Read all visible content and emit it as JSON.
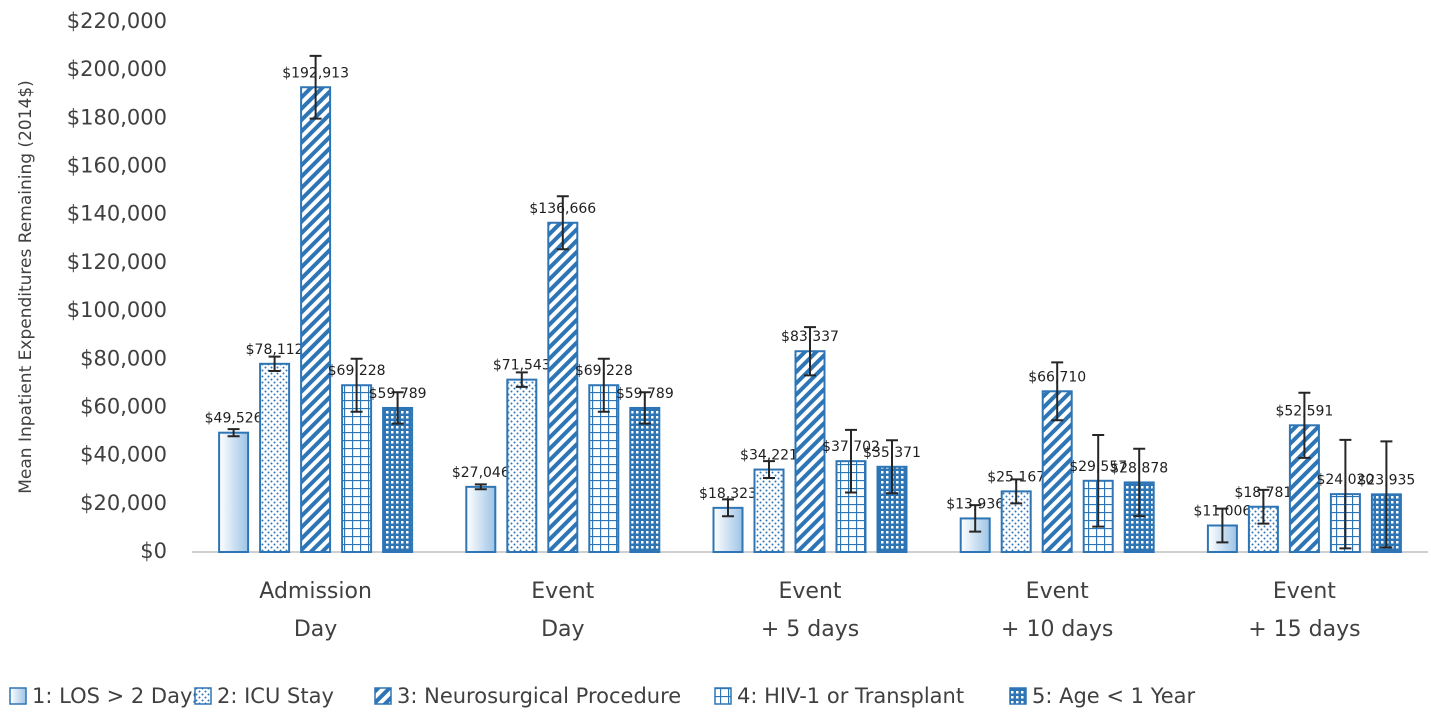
{
  "chart_data": {
    "type": "bar",
    "y_axis_label": "Mean Inpatient Expenditures Remaining (2014$)",
    "categories": [
      [
        "Admission",
        "Day"
      ],
      [
        "Event",
        "Day"
      ],
      [
        "Event",
        "+ 5 days"
      ],
      [
        "Event",
        "+ 10 days"
      ],
      [
        "Event",
        "+ 15 days"
      ]
    ],
    "ylim": [
      0,
      220000
    ],
    "yticks": [
      {
        "value": 0,
        "label": "$0"
      },
      {
        "value": 20000,
        "label": "$20,000"
      },
      {
        "value": 40000,
        "label": "$40,000"
      },
      {
        "value": 60000,
        "label": "$60,000"
      },
      {
        "value": 80000,
        "label": "$80,000"
      },
      {
        "value": 100000,
        "label": "$100,000"
      },
      {
        "value": 120000,
        "label": "$120,000"
      },
      {
        "value": 140000,
        "label": "$140,000"
      },
      {
        "value": 160000,
        "label": "$160,000"
      },
      {
        "value": 180000,
        "label": "$180,000"
      },
      {
        "value": 200000,
        "label": "$200,000"
      },
      {
        "value": 220000,
        "label": "$220,000"
      }
    ],
    "grid": false,
    "legend": "bottom",
    "series": [
      {
        "name": "1: LOS > 2 Days",
        "color": "#2e75b6",
        "pattern": "gradient",
        "values": [
          49526,
          27046,
          18323,
          13936,
          11006
        ],
        "value_labels": [
          "$49,526",
          "$27,046",
          "$18,323",
          "$13,936",
          "$11,006"
        ],
        "errors": [
          1500,
          1000,
          3500,
          5500,
          7000
        ]
      },
      {
        "name": "2: ICU Stay",
        "color": "#2e75b6",
        "pattern": "dots",
        "values": [
          78112,
          71543,
          34221,
          25167,
          18781
        ],
        "value_labels": [
          "$78,112",
          "$71,543",
          "$34,221",
          "$25,167",
          "$18,781"
        ],
        "errors": [
          3000,
          3000,
          3500,
          5000,
          7000
        ]
      },
      {
        "name": "3: Neurosurgical Procedure",
        "color": "#2e75b6",
        "pattern": "diagonal",
        "values": [
          192913,
          136666,
          83337,
          66710,
          52591
        ],
        "value_labels": [
          "$192,913",
          "$136,666",
          "$83,337",
          "$66,710",
          "$52,591"
        ],
        "errors": [
          13000,
          11000,
          10000,
          12000,
          13500
        ]
      },
      {
        "name": "4: HIV-1 or Transplant",
        "color": "#2e75b6",
        "pattern": "grid",
        "values": [
          69228,
          69228,
          37702,
          29557,
          24020
        ],
        "value_labels": [
          "$69,228",
          "$69,228",
          "$37,702",
          "$29,557",
          "$24,020"
        ],
        "errors": [
          11000,
          11000,
          13000,
          19000,
          22500
        ]
      },
      {
        "name": "5: Age < 1 Year",
        "color": "#2e75b6",
        "pattern": "dense",
        "values": [
          59789,
          59789,
          35371,
          28878,
          23935
        ],
        "value_labels": [
          "$59,789",
          "$59,789",
          "$35,371",
          "$28,878",
          "$23,935"
        ],
        "errors": [
          6500,
          6500,
          11000,
          14000,
          22000
        ]
      }
    ]
  }
}
